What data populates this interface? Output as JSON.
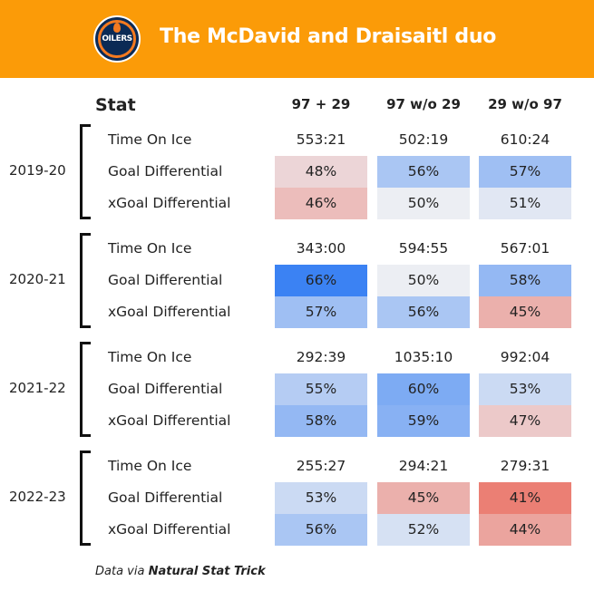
{
  "header": {
    "title": "The McDavid and Draisaitl duo",
    "logo_text": "OILERS"
  },
  "colors": {
    "banner": "#fb9b08",
    "neutral": "#eceef3",
    "blue": "#3b82f3",
    "red": "#eb7f74"
  },
  "chart_data": {
    "type": "table",
    "title": "The McDavid and Draisaitl duo",
    "stat_header": "Stat",
    "columns": [
      "97 + 29",
      "97 w/o 29",
      "29 w/o 97"
    ],
    "stats": [
      "Time On Ice",
      "Goal Differential",
      "xGoal Differential"
    ],
    "seasons": [
      {
        "season": "2019-20",
        "toi": [
          "553:21",
          "502:19",
          "610:24"
        ],
        "gd": [
          48,
          56,
          57
        ],
        "xgd": [
          46,
          50,
          51
        ]
      },
      {
        "season": "2020-21",
        "toi": [
          "343:00",
          "594:55",
          "567:01"
        ],
        "gd": [
          66,
          50,
          58
        ],
        "xgd": [
          57,
          56,
          45
        ]
      },
      {
        "season": "2021-22",
        "toi": [
          "292:39",
          "1035:10",
          "992:04"
        ],
        "gd": [
          55,
          60,
          53
        ],
        "xgd": [
          58,
          59,
          47
        ]
      },
      {
        "season": "2022-23",
        "toi": [
          "255:27",
          "294:21",
          "279:31"
        ],
        "gd": [
          53,
          45,
          41
        ],
        "xgd": [
          56,
          52,
          44
        ]
      }
    ]
  },
  "footer": {
    "prefix": "Data via ",
    "source": "Natural Stat Trick"
  }
}
